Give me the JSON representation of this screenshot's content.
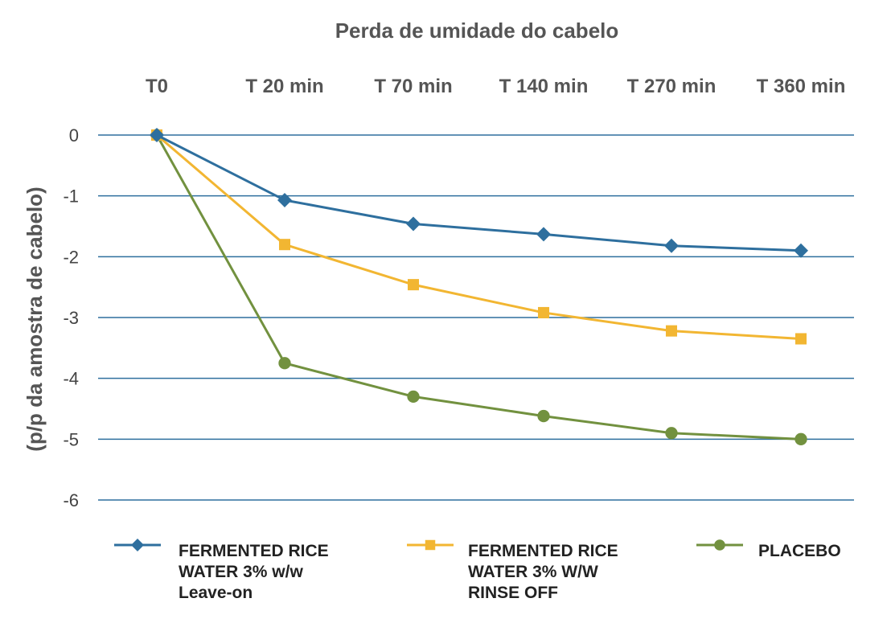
{
  "chart_data": {
    "type": "line",
    "title": "Perda de umidade do cabelo",
    "ylabel": "(p/p da amostra de cabelo)",
    "xlabel": "",
    "categories": [
      "T0",
      "T 20 min",
      "T 70 min",
      "T 140 min",
      "T 270 min",
      "T 360 min"
    ],
    "y_ticks": [
      "0",
      "-1",
      "-2",
      "-3",
      "-4",
      "-5",
      "-6"
    ],
    "ylim": [
      -6,
      0
    ],
    "grid": true,
    "x_axis_position": "top",
    "legend_position": "bottom",
    "series": [
      {
        "name": "FERMENTED RICE WATER 3% w/w Leave-on",
        "legend_lines": [
          "FERMENTED RICE",
          "WATER 3% w/w",
          "Leave-on"
        ],
        "values": [
          0,
          -1.07,
          -1.46,
          -1.63,
          -1.82,
          -1.9
        ],
        "color": "#2e6f9e",
        "marker": "diamond"
      },
      {
        "name": "FERMENTED RICE WATER 3% W/W RINSE OFF",
        "legend_lines": [
          "FERMENTED RICE",
          "WATER 3% W/W",
          "RINSE OFF"
        ],
        "values": [
          0,
          -1.8,
          -2.46,
          -2.92,
          -3.22,
          -3.35
        ],
        "color": "#f2b632",
        "marker": "square"
      },
      {
        "name": "PLACEBO",
        "legend_lines": [
          "PLACEBO"
        ],
        "values": [
          0,
          -3.75,
          -4.3,
          -4.62,
          -4.9,
          -5.0
        ],
        "color": "#72913f",
        "marker": "circle"
      }
    ],
    "gridline_color": "#2e6f9e"
  }
}
